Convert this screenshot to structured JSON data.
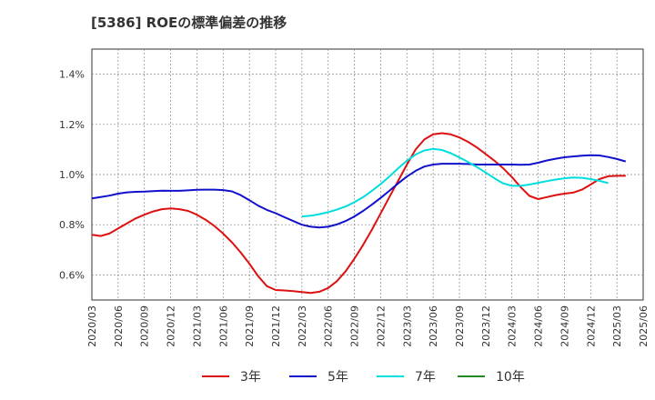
{
  "chart_data": {
    "type": "line",
    "title": "[5386]  ROEの標準偏差の推移",
    "xlabel": "",
    "ylabel": "",
    "ylim": [
      0.5,
      1.5
    ],
    "yticks": [
      0.6,
      0.8,
      1.0,
      1.2,
      1.4
    ],
    "ytick_labels": [
      "0.6%",
      "0.8%",
      "1.0%",
      "1.2%",
      "1.4%"
    ],
    "x_start": "2020/03",
    "x_tick_labels": [
      "2020/03",
      "2020/06",
      "2020/09",
      "2020/12",
      "2021/03",
      "2021/06",
      "2021/09",
      "2021/12",
      "2022/03",
      "2022/06",
      "2022/09",
      "2022/12",
      "2023/03",
      "2023/06",
      "2023/09",
      "2023/12",
      "2024/03",
      "2024/06",
      "2024/09",
      "2024/12",
      "2025/03",
      "2025/06"
    ],
    "grid": true,
    "legend_position": "bottom",
    "series": [
      {
        "name": "3年",
        "color": "#dd1111",
        "start_index": 0,
        "values": [
          0.76,
          0.755,
          0.765,
          0.785,
          0.805,
          0.825,
          0.84,
          0.853,
          0.862,
          0.865,
          0.862,
          0.855,
          0.84,
          0.82,
          0.795,
          0.765,
          0.73,
          0.69,
          0.645,
          0.595,
          0.555,
          0.54,
          0.538,
          0.535,
          0.532,
          0.528,
          0.533,
          0.548,
          0.575,
          0.615,
          0.665,
          0.72,
          0.78,
          0.845,
          0.91,
          0.975,
          1.04,
          1.1,
          1.14,
          1.16,
          1.165,
          1.16,
          1.148,
          1.13,
          1.108,
          1.082,
          1.055,
          1.025,
          0.99,
          0.95,
          0.915,
          0.902,
          0.91,
          0.918,
          0.924,
          0.928,
          0.94,
          0.96,
          0.982,
          0.993,
          0.995,
          0.995
        ]
      },
      {
        "name": "5年",
        "color": "#1111cc",
        "start_index": 0,
        "values": [
          0.905,
          0.91,
          0.916,
          0.924,
          0.929,
          0.931,
          0.932,
          0.934,
          0.936,
          0.935,
          0.935,
          0.937,
          0.939,
          0.94,
          0.94,
          0.938,
          0.933,
          0.918,
          0.898,
          0.876,
          0.859,
          0.846,
          0.83,
          0.815,
          0.8,
          0.792,
          0.789,
          0.792,
          0.801,
          0.815,
          0.833,
          0.855,
          0.88,
          0.907,
          0.935,
          0.965,
          0.992,
          1.015,
          1.032,
          1.04,
          1.043,
          1.043,
          1.043,
          1.042,
          1.04,
          1.04,
          1.04,
          1.04,
          1.04,
          1.039,
          1.04,
          1.047,
          1.056,
          1.063,
          1.069,
          1.072,
          1.075,
          1.077,
          1.076,
          1.07,
          1.062,
          1.052
        ]
      },
      {
        "name": "7年",
        "color": "#00dddd",
        "start_index": 24,
        "values": [
          0.833,
          0.836,
          0.842,
          0.85,
          0.86,
          0.873,
          0.89,
          0.91,
          0.935,
          0.962,
          0.992,
          1.025,
          1.055,
          1.08,
          1.096,
          1.102,
          1.098,
          1.085,
          1.068,
          1.05,
          1.03,
          1.008,
          0.985,
          0.965,
          0.955,
          0.955,
          0.96,
          0.967,
          0.974,
          0.98,
          0.985,
          0.988,
          0.987,
          0.982,
          0.975,
          0.966
        ]
      },
      {
        "name": "10年",
        "color": "#228822",
        "start_index": 0,
        "values": []
      }
    ]
  }
}
